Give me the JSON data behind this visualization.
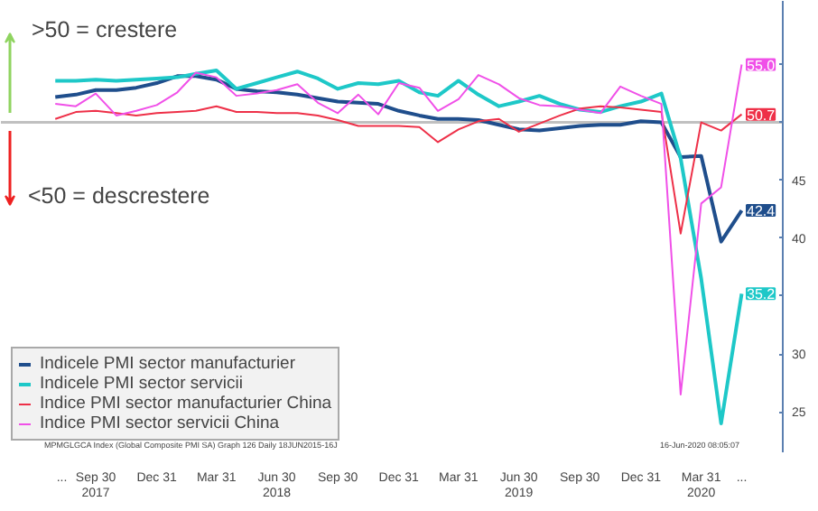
{
  "chart_data": {
    "type": "line",
    "x": [
      "2017-07-31",
      "2017-08-31",
      "2017-09-30",
      "2017-10-31",
      "2017-11-30",
      "2017-12-31",
      "2018-01-31",
      "2018-02-28",
      "2018-03-31",
      "2018-04-30",
      "2018-05-31",
      "2018-06-30",
      "2018-07-31",
      "2018-08-31",
      "2018-09-30",
      "2018-10-31",
      "2018-11-30",
      "2018-12-31",
      "2019-01-31",
      "2019-02-28",
      "2019-03-31",
      "2019-04-30",
      "2019-05-31",
      "2019-06-30",
      "2019-07-31",
      "2019-08-31",
      "2019-09-30",
      "2019-10-31",
      "2019-11-30",
      "2019-12-31",
      "2020-01-31",
      "2020-02-29",
      "2020-03-31",
      "2020-04-30",
      "2020-05-31"
    ],
    "series": [
      {
        "name": "Indicele PMI sector manufacturier",
        "color": "#1f4e8c",
        "values": [
          52.2,
          52.4,
          52.8,
          52.8,
          53.0,
          53.4,
          54.0,
          54.0,
          53.7,
          52.9,
          52.7,
          52.6,
          52.4,
          52.1,
          51.8,
          51.7,
          51.6,
          51.0,
          50.6,
          50.3,
          50.3,
          50.2,
          49.8,
          49.4,
          49.3,
          49.5,
          49.7,
          49.8,
          49.8,
          50.1,
          50.0,
          47.0,
          47.1,
          39.7,
          42.4
        ],
        "value_labels": [
          null,
          null,
          null,
          null,
          null,
          null,
          null,
          null,
          null,
          null,
          null,
          null,
          null,
          null,
          null,
          null,
          null,
          null,
          null,
          null,
          null,
          null,
          null,
          null,
          null,
          null,
          null,
          null,
          null,
          null,
          null,
          null,
          null,
          null,
          "42.4"
        ]
      },
      {
        "name": "Indicele PMI sector servicii",
        "color": "#1ec8c8",
        "values": [
          53.6,
          53.6,
          53.7,
          53.6,
          53.7,
          53.8,
          53.9,
          54.2,
          54.5,
          52.9,
          53.4,
          53.9,
          54.4,
          53.8,
          52.9,
          53.4,
          53.3,
          53.6,
          52.6,
          52.3,
          53.6,
          52.4,
          51.4,
          51.8,
          52.3,
          51.6,
          51.1,
          50.9,
          51.4,
          51.8,
          52.5,
          46.9,
          36.5,
          24.0,
          35.2
        ],
        "value_labels": [
          null,
          null,
          null,
          null,
          null,
          null,
          null,
          null,
          null,
          null,
          null,
          null,
          null,
          null,
          null,
          null,
          null,
          null,
          null,
          null,
          null,
          null,
          null,
          null,
          null,
          null,
          null,
          null,
          null,
          null,
          null,
          null,
          null,
          null,
          "35.2"
        ]
      },
      {
        "name": "Indice PMI sector manufacturier China",
        "color": "#ee3048",
        "values": [
          50.3,
          50.9,
          51.0,
          50.8,
          50.6,
          50.8,
          50.9,
          51.0,
          51.4,
          50.9,
          50.9,
          50.8,
          50.8,
          50.6,
          50.2,
          49.7,
          49.7,
          49.7,
          49.6,
          48.3,
          49.4,
          50.1,
          50.3,
          49.2,
          49.9,
          50.6,
          51.2,
          51.4,
          51.3,
          51.1,
          50.9,
          40.4,
          50.0,
          49.3,
          50.7
        ],
        "value_labels": [
          null,
          null,
          null,
          null,
          null,
          null,
          null,
          null,
          null,
          null,
          null,
          null,
          null,
          null,
          null,
          null,
          null,
          null,
          null,
          null,
          null,
          null,
          null,
          null,
          null,
          null,
          null,
          null,
          null,
          null,
          null,
          null,
          null,
          null,
          "50.7"
        ]
      },
      {
        "name": "Indice PMI sector servicii China",
        "color": "#f050e8",
        "values": [
          51.6,
          51.4,
          52.5,
          50.6,
          51.0,
          51.5,
          52.6,
          54.3,
          53.9,
          52.3,
          52.5,
          52.8,
          53.3,
          51.7,
          50.8,
          52.4,
          50.7,
          53.4,
          53.0,
          51.0,
          52.0,
          54.1,
          53.3,
          52.1,
          51.5,
          51.4,
          51.1,
          50.8,
          53.1,
          52.3,
          51.6,
          26.5,
          43.0,
          44.4,
          55.0
        ],
        "value_labels": [
          null,
          null,
          null,
          null,
          null,
          null,
          null,
          null,
          null,
          null,
          null,
          null,
          null,
          null,
          null,
          null,
          null,
          null,
          null,
          null,
          null,
          null,
          null,
          null,
          null,
          null,
          null,
          null,
          null,
          null,
          null,
          null,
          null,
          null,
          "55.0"
        ]
      }
    ],
    "xlim": [
      "2017-05-10",
      "2020-08-01"
    ],
    "xticks": [
      {
        "value": "2017-08-10",
        "label": "..."
      },
      {
        "value": "2017-09-30",
        "label": "Sep 30\n2017"
      },
      {
        "value": "2017-12-31",
        "label": "Dec 31"
      },
      {
        "value": "2018-03-31",
        "label": "Mar 31"
      },
      {
        "value": "2018-06-30",
        "label": "Jun 30\n2018"
      },
      {
        "value": "2018-09-30",
        "label": "Sep 30"
      },
      {
        "value": "2018-12-31",
        "label": "Dec 31"
      },
      {
        "value": "2019-03-31",
        "label": "Mar 31"
      },
      {
        "value": "2019-06-30",
        "label": "Jun 30\n2019"
      },
      {
        "value": "2019-09-30",
        "label": "Sep 30"
      },
      {
        "value": "2019-12-31",
        "label": "Dec 31"
      },
      {
        "value": "2020-03-31",
        "label": "Mar 31\n2020"
      },
      {
        "value": "2020-05-31",
        "label": "..."
      }
    ],
    "ylim": [
      21.5,
      60.5
    ],
    "yticks": [
      25,
      30,
      {
        "value": 35,
        "label": null
      },
      40,
      45,
      {
        "value": 50,
        "label": null
      },
      {
        "value": 55,
        "label": null
      }
    ],
    "ref_lines": [
      {
        "axis": "y",
        "value": 50,
        "color": "#c0c0c0"
      }
    ],
    "annotations": [
      ">50 = crestere",
      "<50 = descrestere",
      "MPMGLGCA Index (Global Composite PMI SA) Graph 126 Daily 18JUN2015-16J",
      "16-Jun-2020 08:05:07"
    ],
    "legend": "bottom left",
    "grid": false
  }
}
